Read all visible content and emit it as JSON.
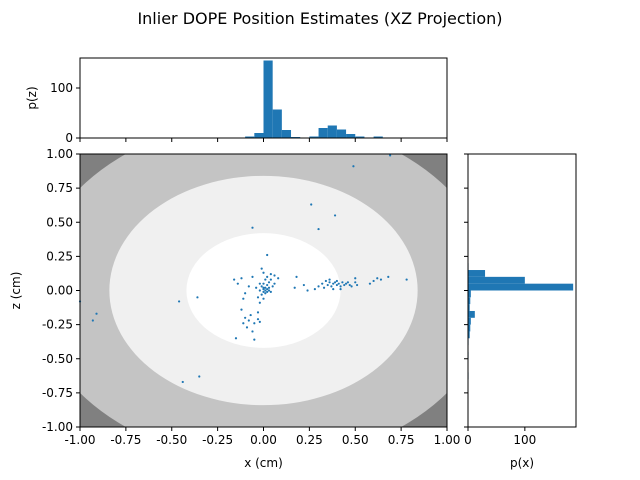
{
  "figure": {
    "title": "Inlier DOPE Position Estimates (XZ Projection)"
  },
  "chart_data": [
    {
      "id": "main",
      "type": "scatter",
      "xlabel": "x (cm)",
      "ylabel": "z (cm)",
      "xlim": [
        -1.0,
        1.0
      ],
      "ylim": [
        -1.0,
        1.0
      ],
      "xticks": [
        "-1.00",
        "-0.75",
        "-0.50",
        "-0.25",
        "0.00",
        "0.25",
        "0.50",
        "0.75",
        "1.00"
      ],
      "xtick_values": [
        -1.0,
        -0.75,
        -0.5,
        -0.25,
        0.0,
        0.25,
        0.5,
        0.75,
        1.0
      ],
      "yticks": [
        "-1.00",
        "-0.75",
        "-0.50",
        "-0.25",
        "0.00",
        "0.25",
        "0.50",
        "0.75",
        "1.00"
      ],
      "ytick_values": [
        -1.0,
        -0.75,
        -0.5,
        -0.25,
        0.0,
        0.25,
        0.5,
        0.75,
        1.0
      ],
      "background_regions": [
        {
          "radius": 1.25,
          "color": "#c4c4c4"
        },
        {
          "radius": 0.84,
          "color": "#f0f0f0"
        },
        {
          "radius": 0.42,
          "color": "#ffffff"
        }
      ],
      "outer_color": "#808080",
      "point_color": "#1f77b4",
      "points": [
        [
          0.69,
          0.99
        ],
        [
          0.49,
          0.91
        ],
        [
          0.26,
          0.63
        ],
        [
          0.39,
          0.55
        ],
        [
          0.3,
          0.45
        ],
        [
          -0.06,
          0.46
        ],
        [
          -1.0,
          -0.08
        ],
        [
          -0.93,
          -0.22
        ],
        [
          -0.91,
          -0.17
        ],
        [
          -0.46,
          -0.08
        ],
        [
          -0.44,
          -0.67
        ],
        [
          -0.35,
          -0.63
        ],
        [
          -0.36,
          -0.05
        ],
        [
          -0.16,
          0.08
        ],
        [
          -0.14,
          0.05
        ],
        [
          -0.12,
          0.09
        ],
        [
          -0.1,
          -0.02
        ],
        [
          -0.11,
          -0.06
        ],
        [
          -0.12,
          -0.14
        ],
        [
          -0.11,
          -0.24
        ],
        [
          -0.1,
          -0.2
        ],
        [
          -0.09,
          -0.27
        ],
        [
          -0.07,
          -0.18
        ],
        [
          -0.08,
          -0.22
        ],
        [
          -0.05,
          -0.24
        ],
        [
          -0.06,
          -0.3
        ],
        [
          -0.05,
          -0.36
        ],
        [
          -0.03,
          -0.21
        ],
        [
          -0.03,
          -0.16
        ],
        [
          -0.02,
          -0.23
        ],
        [
          -0.15,
          -0.35
        ],
        [
          -0.06,
          0.1
        ],
        [
          -0.04,
          0.02
        ],
        [
          -0.03,
          -0.05
        ],
        [
          -0.02,
          -0.09
        ],
        [
          -0.01,
          -0.03
        ],
        [
          -0.01,
          0.03
        ],
        [
          0.0,
          0.01
        ],
        [
          0.0,
          0.05
        ],
        [
          0.01,
          -0.02
        ],
        [
          0.01,
          0.08
        ],
        [
          0.02,
          0.04
        ],
        [
          0.02,
          0.1
        ],
        [
          0.03,
          0.06
        ],
        [
          0.03,
          0.0
        ],
        [
          0.04,
          0.12
        ],
        [
          0.04,
          0.08
        ],
        [
          0.05,
          0.03
        ],
        [
          0.06,
          0.11
        ],
        [
          0.06,
          0.05
        ],
        [
          0.08,
          0.09
        ],
        [
          0.02,
          0.26
        ],
        [
          0.0,
          0.13
        ],
        [
          -0.01,
          0.16
        ],
        [
          0.0,
          -0.06
        ],
        [
          0.0,
          -0.01
        ],
        [
          0.01,
          0.0
        ],
        [
          0.02,
          0.01
        ],
        [
          0.02,
          -0.01
        ],
        [
          0.03,
          0.02
        ],
        [
          0.01,
          0.02
        ],
        [
          0.04,
          -0.01
        ],
        [
          -0.02,
          0.0
        ],
        [
          0.0,
          0.02
        ],
        [
          0.18,
          0.1
        ],
        [
          0.17,
          0.02
        ],
        [
          0.22,
          0.04
        ],
        [
          0.28,
          0.01
        ],
        [
          0.3,
          0.03
        ],
        [
          0.32,
          0.05
        ],
        [
          0.33,
          0.02
        ],
        [
          0.34,
          0.07
        ],
        [
          0.35,
          0.04
        ],
        [
          0.36,
          0.06
        ],
        [
          0.37,
          0.03
        ],
        [
          0.38,
          0.05
        ],
        [
          0.39,
          0.06
        ],
        [
          0.4,
          0.04
        ],
        [
          0.41,
          0.05
        ],
        [
          0.42,
          0.03
        ],
        [
          0.43,
          0.06
        ],
        [
          0.44,
          0.04
        ],
        [
          0.45,
          0.05
        ],
        [
          0.46,
          0.06
        ],
        [
          0.47,
          0.04
        ],
        [
          0.48,
          0.03
        ],
        [
          0.5,
          0.06
        ],
        [
          0.51,
          0.04
        ],
        [
          0.42,
          0.01
        ],
        [
          0.4,
          0.07
        ],
        [
          0.38,
          0.01
        ],
        [
          0.36,
          0.08
        ],
        [
          0.58,
          0.05
        ],
        [
          0.6,
          0.07
        ],
        [
          0.62,
          0.09
        ],
        [
          0.64,
          0.08
        ],
        [
          0.68,
          0.1
        ],
        [
          0.78,
          0.08
        ],
        [
          0.5,
          0.09
        ],
        [
          0.24,
          0.0
        ],
        [
          -0.08,
          0.03
        ],
        [
          -0.02,
          0.05
        ]
      ]
    },
    {
      "id": "top-hist",
      "type": "bar",
      "ylabel": "p(z)",
      "xlim": [
        -1.0,
        1.0
      ],
      "ylim": [
        0,
        160
      ],
      "yticks": [
        "0",
        "100"
      ],
      "ytick_values": [
        0,
        100
      ],
      "bar_color": "#1f77b4",
      "bins": [
        [
          -1.0,
          1
        ],
        [
          -0.95,
          1
        ],
        [
          -0.45,
          1
        ],
        [
          -0.4,
          1
        ],
        [
          -0.35,
          1
        ],
        [
          -0.15,
          1
        ],
        [
          -0.1,
          3
        ],
        [
          -0.05,
          10
        ],
        [
          0.0,
          155
        ],
        [
          0.05,
          57
        ],
        [
          0.1,
          16
        ],
        [
          0.15,
          2
        ],
        [
          0.25,
          3
        ],
        [
          0.3,
          20
        ],
        [
          0.35,
          25
        ],
        [
          0.4,
          17
        ],
        [
          0.45,
          8
        ],
        [
          0.5,
          3
        ],
        [
          0.6,
          3
        ],
        [
          0.7,
          1
        ],
        [
          0.75,
          1
        ],
        [
          0.8,
          1
        ]
      ],
      "bin_width": 0.05
    },
    {
      "id": "right-hist",
      "type": "bar",
      "orientation": "horizontal",
      "xlabel": "p(x)",
      "xlim": [
        0,
        190
      ],
      "ylim": [
        -1.0,
        1.0
      ],
      "xticks": [
        "0",
        "100"
      ],
      "xtick_values": [
        0,
        100
      ],
      "bar_color": "#1f77b4",
      "bins": [
        [
          0.15,
          1
        ],
        [
          0.1,
          30
        ],
        [
          0.05,
          100
        ],
        [
          0.0,
          185
        ],
        [
          -0.05,
          5
        ],
        [
          -0.1,
          4
        ],
        [
          -0.15,
          3
        ],
        [
          -0.2,
          12
        ],
        [
          -0.25,
          5
        ],
        [
          -0.3,
          4
        ],
        [
          -0.35,
          3
        ],
        [
          -0.4,
          1
        ],
        [
          -0.5,
          1
        ],
        [
          -0.65,
          1
        ]
      ],
      "bin_width": 0.05
    }
  ]
}
